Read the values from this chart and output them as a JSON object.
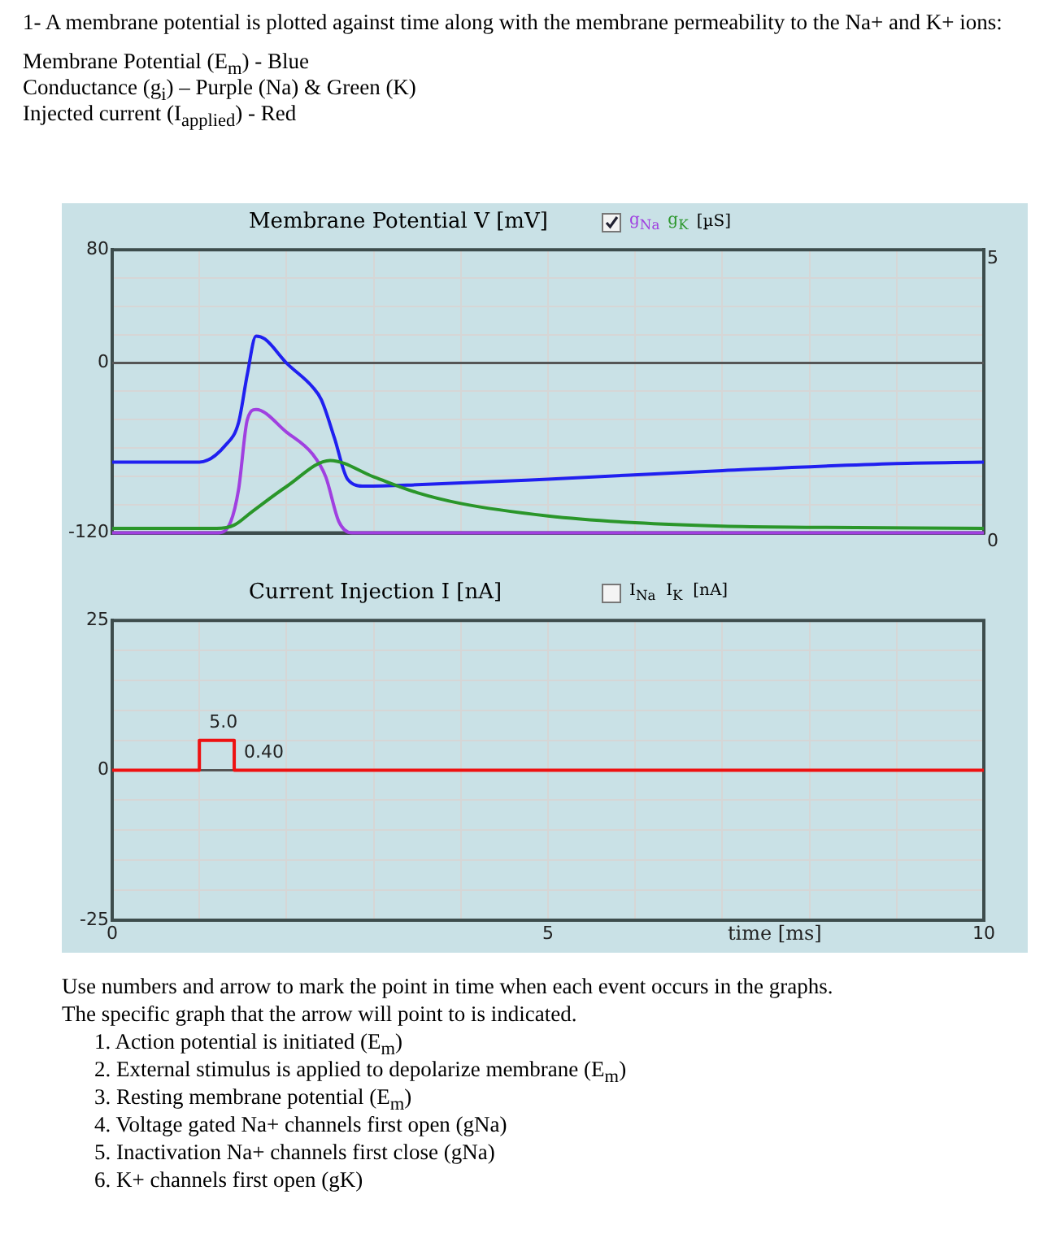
{
  "chart_data": [
    {
      "type": "line",
      "title": "Membrane Potential V [mV]",
      "legend": "top",
      "legend_title": "[µS]",
      "grid": true,
      "tick_labels": "y",
      "annotations": [
        "1- A membrane potential is plotted against time along with the membrane permeability to the Na+ and K+ ions:",
        "Membrane Potential (E$_{m}$) - Blue",
        "Conductance (g$_{i}$) – Purple (Na) & Green (K)",
        "Injected current (I$_{applied}$) - Red"
      ],
      "xlim": [
        0,
        10
      ],
      "xticks": [
        {
          "value": 0,
          "label": null
        },
        {
          "value": 1,
          "label": null
        },
        {
          "value": 2,
          "label": null
        },
        {
          "value": 3,
          "label": null
        },
        {
          "value": 4,
          "label": null
        },
        {
          "value": 5,
          "label": null
        },
        {
          "value": 6,
          "label": null
        },
        {
          "value": 7,
          "label": null
        },
        {
          "value": 8,
          "label": null
        },
        {
          "value": 9,
          "label": null
        },
        {
          "value": 10,
          "label": null
        }
      ],
      "ylim": [
        -120,
        80
      ],
      "yticks": [
        -120,
        {
          "value": -100,
          "label": null
        },
        {
          "value": -80,
          "label": null
        },
        {
          "value": -60,
          "label": null
        },
        {
          "value": -40,
          "label": null
        },
        {
          "value": -20,
          "label": null
        },
        0,
        {
          "value": 20,
          "label": null
        },
        {
          "value": 40,
          "label": null
        },
        {
          "value": 60,
          "label": null
        },
        80
      ],
      "y2lim": [
        0,
        5
      ],
      "y2ticks": [
        0,
        5
      ],
      "ref_lines": [
        {
          "axis": "y",
          "value": 0,
          "color": "#555555"
        }
      ],
      "series": [
        {
          "color": "#2020f0",
          "x": [
            0,
            1,
            1.3,
            1.45,
            1.55,
            1.65,
            1.75,
            2.0,
            2.3,
            2.4,
            2.55,
            2.7,
            2.9,
            3.5,
            5,
            7,
            9,
            10
          ],
          "values": [
            -70,
            -70,
            -58,
            -42,
            -8,
            19,
            17,
            0,
            -17,
            -26,
            -53,
            -82,
            -87,
            -86,
            -82,
            -76,
            -71,
            -70
          ]
        },
        {
          "name": "g$_{Na}$",
          "axis": "y2",
          "color": "#a040e0",
          "x": [
            0,
            1.2,
            1.36,
            1.45,
            1.55,
            1.65,
            2.0,
            2.3,
            2.45,
            2.6,
            2.75,
            10
          ],
          "values": [
            0,
            0,
            0.2,
            0.77,
            2.0,
            2.18,
            1.78,
            1.39,
            0.99,
            0.2,
            0,
            0
          ]
        },
        {
          "name": "g$_{K}$",
          "axis": "y2",
          "color": "#2a962a",
          "x": [
            0,
            1.2,
            1.4,
            1.6,
            2.0,
            2.5,
            3.0,
            3.5,
            4,
            5,
            6,
            7,
            8,
            10
          ],
          "values": [
            0.08,
            0.08,
            0.14,
            0.37,
            0.82,
            1.28,
            0.99,
            0.71,
            0.52,
            0.3,
            0.18,
            0.12,
            0.1,
            0.08
          ]
        }
      ]
    },
    {
      "type": "step",
      "title": "Current Injection I [nA]",
      "legend_title": "I$_{Na}$  I$_{K}$  [nA]",
      "grid": true,
      "xlabel": "time [ms]",
      "annotations": [
        {
          "text": "5.0",
          "x": 1.0,
          "y": 5
        },
        {
          "text": "0.40",
          "x": 1.4,
          "y": 0
        },
        "Use numbers and arrow to mark the point in time when each event occurs in the graphs.",
        "The specific graph that the arrow will point to is indicated.",
        "1.  Action potential is initiated (E$_{m}$)",
        "2.  External stimulus is applied to depolarize membrane (E$_{m}$)",
        "3.  Resting membrane potential (E$_{m}$)",
        "4.  Voltage gated Na+ channels first open (gNa)",
        "5.  Inactivation Na+ channels first close (gNa)",
        "6.  K+ channels first open (gK)"
      ],
      "xlim": [
        0,
        10
      ],
      "xticks": [
        0,
        {
          "value": 1,
          "label": null
        },
        {
          "value": 2,
          "label": null
        },
        {
          "value": 3,
          "label": null
        },
        {
          "value": 4,
          "label": null
        },
        5,
        {
          "value": 6,
          "label": null
        },
        {
          "value": 7,
          "label": null
        },
        {
          "value": 8,
          "label": null
        },
        {
          "value": 9,
          "label": null
        },
        10
      ],
      "ylim": [
        -25,
        25
      ],
      "yticks": [
        -25,
        {
          "value": -20,
          "label": null
        },
        {
          "value": -15,
          "label": null
        },
        {
          "value": -10,
          "label": null
        },
        {
          "value": -5,
          "label": null
        },
        0,
        {
          "value": 5,
          "label": null
        },
        {
          "value": 10,
          "label": null
        },
        {
          "value": 15,
          "label": null
        },
        {
          "value": 20,
          "label": null
        },
        25
      ],
      "ref_lines": [
        {
          "axis": "y",
          "value": 0,
          "color": "#555555"
        }
      ],
      "series": [
        {
          "color": "#ee1111",
          "x": [
            0,
            1,
            1.4,
            10
          ],
          "values": [
            0,
            5,
            0,
            0
          ]
        }
      ]
    }
  ]
}
